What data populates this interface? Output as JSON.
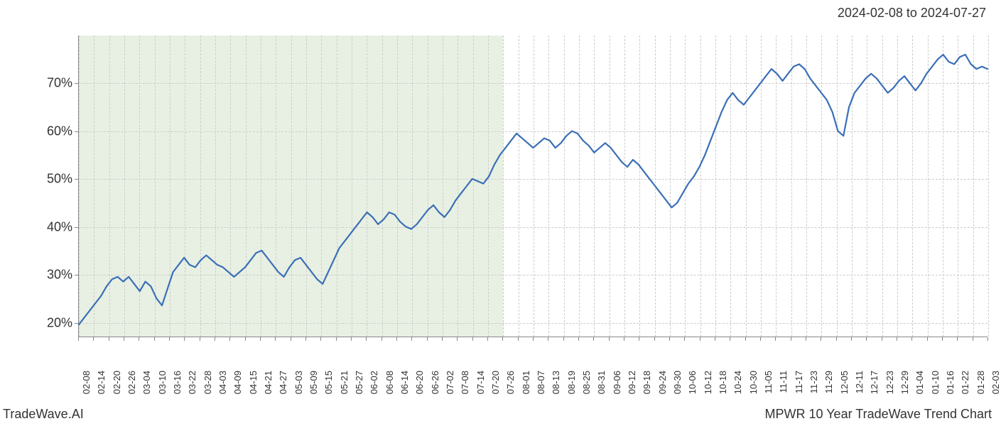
{
  "date_range_label": "2024-02-08 to 2024-07-27",
  "footer_left": "TradeWave.AI",
  "footer_right": "MPWR 10 Year TradeWave Trend Chart",
  "chart": {
    "type": "line",
    "line_color": "#3a6fb7",
    "line_width": 2.2,
    "background_color": "#ffffff",
    "grid_color": "#cccccc",
    "grid_dash": "3,3",
    "axis_color": "#888888",
    "highlight_color": "#dce8d4",
    "highlight_opacity": 0.65,
    "axis_label_fontsize": 18,
    "xtick_label_fontsize": 13,
    "ylim": [
      17,
      80
    ],
    "y_ticks": [
      20,
      30,
      40,
      50,
      60,
      70
    ],
    "y_tick_suffix": "%",
    "x_labels": [
      "02-08",
      "02-14",
      "02-20",
      "02-26",
      "03-04",
      "03-10",
      "03-16",
      "03-22",
      "03-28",
      "04-03",
      "04-09",
      "04-15",
      "04-21",
      "04-27",
      "05-03",
      "05-09",
      "05-15",
      "05-21",
      "05-27",
      "06-02",
      "06-08",
      "06-14",
      "06-20",
      "06-26",
      "07-02",
      "07-08",
      "07-14",
      "07-20",
      "07-26",
      "08-01",
      "08-07",
      "08-13",
      "08-19",
      "08-25",
      "08-31",
      "09-06",
      "09-12",
      "09-18",
      "09-24",
      "09-30",
      "10-06",
      "10-12",
      "10-18",
      "10-24",
      "10-30",
      "11-05",
      "11-11",
      "11-17",
      "11-23",
      "11-29",
      "12-05",
      "12-11",
      "12-17",
      "12-23",
      "12-29",
      "01-04",
      "01-10",
      "01-16",
      "01-22",
      "01-28",
      "02-03"
    ],
    "highlight_start_index": 0,
    "highlight_end_index": 28,
    "series": [
      19.5,
      21.0,
      22.5,
      24.0,
      25.5,
      27.5,
      29.0,
      29.5,
      28.5,
      29.5,
      28.0,
      26.5,
      28.5,
      27.5,
      25.0,
      23.5,
      27.0,
      30.5,
      32.0,
      33.5,
      32.0,
      31.5,
      33.0,
      34.0,
      33.0,
      32.0,
      31.5,
      30.5,
      29.5,
      30.5,
      31.5,
      33.0,
      34.5,
      35.0,
      33.5,
      32.0,
      30.5,
      29.5,
      31.5,
      33.0,
      33.5,
      32.0,
      30.5,
      29.0,
      28.0,
      30.5,
      33.0,
      35.5,
      37.0,
      38.5,
      40.0,
      41.5,
      43.0,
      42.0,
      40.5,
      41.5,
      43.0,
      42.5,
      41.0,
      40.0,
      39.5,
      40.5,
      42.0,
      43.5,
      44.5,
      43.0,
      42.0,
      43.5,
      45.5,
      47.0,
      48.5,
      50.0,
      49.5,
      49.0,
      50.5,
      53.0,
      55.0,
      56.5,
      58.0,
      59.5,
      58.5,
      57.5,
      56.5,
      57.5,
      58.5,
      58.0,
      56.5,
      57.5,
      59.0,
      60.0,
      59.5,
      58.0,
      57.0,
      55.5,
      56.5,
      57.5,
      56.5,
      55.0,
      53.5,
      52.5,
      54.0,
      53.0,
      51.5,
      50.0,
      48.5,
      47.0,
      45.5,
      44.0,
      45.0,
      47.0,
      49.0,
      50.5,
      52.5,
      55.0,
      58.0,
      61.0,
      64.0,
      66.5,
      68.0,
      66.5,
      65.5,
      67.0,
      68.5,
      70.0,
      71.5,
      73.0,
      72.0,
      70.5,
      72.0,
      73.5,
      74.0,
      73.0,
      71.0,
      69.5,
      68.0,
      66.5,
      64.0,
      60.0,
      59.0,
      65.0,
      68.0,
      69.5,
      71.0,
      72.0,
      71.0,
      69.5,
      68.0,
      69.0,
      70.5,
      71.5,
      70.0,
      68.5,
      70.0,
      72.0,
      73.5,
      75.0,
      76.0,
      74.5,
      74.0,
      75.5,
      76.0,
      74.0,
      73.0,
      73.5,
      73.0
    ]
  }
}
